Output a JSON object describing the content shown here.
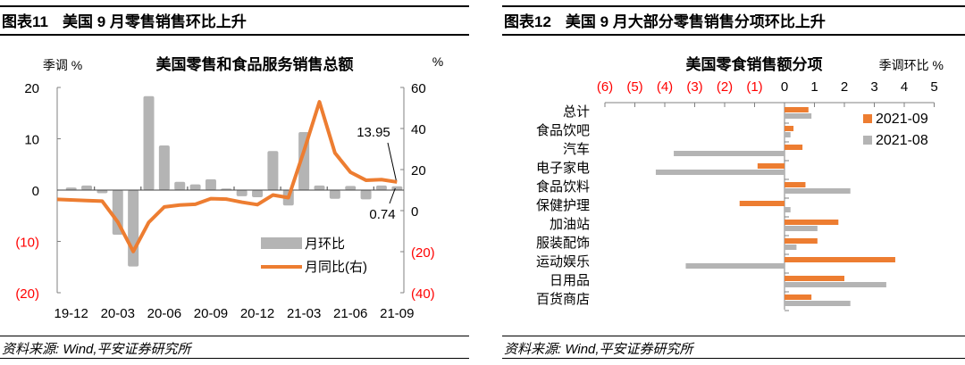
{
  "left": {
    "figure_number": "图表11",
    "figure_title": "美国 9 月零售销售环比上升",
    "source": "资料来源: Wind,平安证券研究所"
  },
  "right": {
    "figure_number": "图表12",
    "figure_title": "美国 9 月大部分零售销售分项环比上升",
    "source": "资料来源: Wind,平安证券研究所"
  },
  "chart_data": [
    {
      "type": "bar+line",
      "title": "美国零售和食品服务销售总额",
      "ylabel_left": "季调 %",
      "ylabel_right": "%",
      "ylim_left": [
        -20,
        20
      ],
      "ylim_right": [
        -40,
        60
      ],
      "yticks_left": [
        "20",
        "10",
        "0",
        "(10)",
        "(20)"
      ],
      "yticks_right": [
        "60",
        "40",
        "20",
        "0",
        "(20)",
        "(40)"
      ],
      "xticks": [
        "19-12",
        "20-03",
        "20-06",
        "20-09",
        "20-12",
        "21-03",
        "21-06",
        "21-09"
      ],
      "categories": [
        "19-12",
        "20-01",
        "20-02",
        "20-03",
        "20-04",
        "20-05",
        "20-06",
        "20-07",
        "20-08",
        "20-09",
        "20-10",
        "20-11",
        "20-12",
        "21-01",
        "21-02",
        "21-03",
        "21-04",
        "21-05",
        "21-06",
        "21-07",
        "21-08",
        "21-09"
      ],
      "series": [
        {
          "name": "月环比",
          "axis": "left",
          "kind": "bar",
          "color": "#b4b4b4",
          "values": [
            0.5,
            0.9,
            -0.6,
            -8.7,
            -14.9,
            18.3,
            8.7,
            1.6,
            1.1,
            2.1,
            0.3,
            -1.2,
            -1.4,
            7.6,
            -3.0,
            11.3,
            0.9,
            -1.7,
            0.8,
            -1.8,
            0.9,
            0.74
          ]
        },
        {
          "name": "月同比(右)",
          "axis": "right",
          "kind": "line",
          "color": "#ed7d31",
          "values": [
            5.5,
            4.9,
            4.6,
            -5.5,
            -19.9,
            -5.7,
            1.8,
            2.7,
            3.1,
            5.8,
            5.6,
            4.1,
            2.9,
            7.6,
            6.3,
            29.0,
            53.0,
            28.1,
            18.7,
            14.8,
            15.1,
            13.95
          ]
        }
      ],
      "annotations": [
        "13.95",
        "0.74"
      ],
      "legend": [
        "月环比",
        "月同比(右)"
      ],
      "legend_position": "lower-right"
    },
    {
      "type": "bar",
      "orientation": "horizontal",
      "title": "美国零食销售额分项",
      "unit_label": "季调环比 %",
      "xlim": [
        -6,
        5
      ],
      "xticks": [
        "(6)",
        "(5)",
        "(4)",
        "(3)",
        "(2)",
        "(1)",
        "0",
        "1",
        "2",
        "3",
        "4",
        "5"
      ],
      "categories": [
        "总计",
        "食品饮吧",
        "汽车",
        "电子家电",
        "食品饮料",
        "保健护理",
        "加油站",
        "服装配饰",
        "运动娱乐",
        "日用品",
        "百货商店"
      ],
      "series": [
        {
          "name": "2021-09",
          "color": "#ed7d31",
          "values": [
            0.8,
            0.3,
            0.6,
            -0.9,
            0.7,
            -1.5,
            1.8,
            1.1,
            3.7,
            2.0,
            0.9
          ]
        },
        {
          "name": "2021-08",
          "color": "#b4b4b4",
          "values": [
            0.9,
            0.2,
            -3.7,
            -4.3,
            2.2,
            0.2,
            1.1,
            0.4,
            -3.3,
            3.4,
            2.2
          ]
        }
      ],
      "legend": [
        "2021-09",
        "2021-08"
      ],
      "legend_position": "upper-right"
    }
  ]
}
